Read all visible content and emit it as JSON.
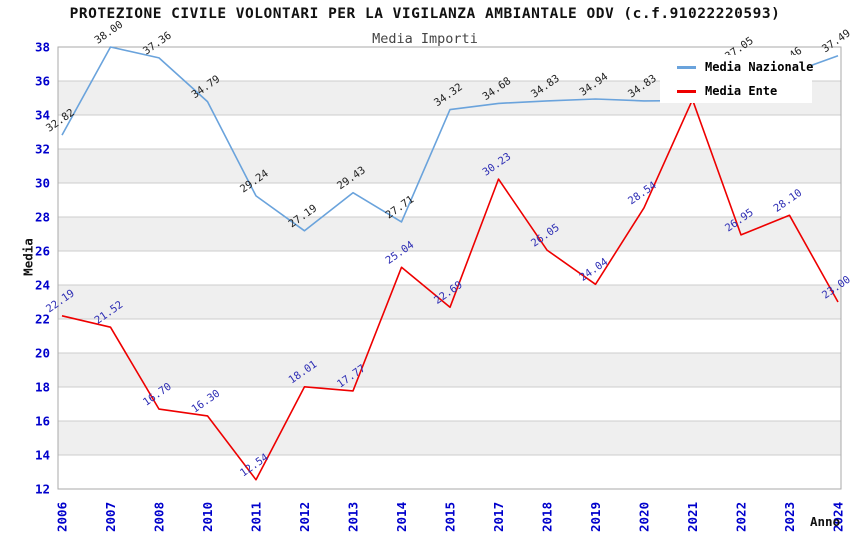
{
  "chart_data": {
    "type": "line",
    "title": "PROTEZIONE CIVILE VOLONTARI PER LA VIGILANZA AMBIANTALE ODV (c.f.91022220593)",
    "subtitle": "Media Importi",
    "xlabel": "Anno",
    "ylabel": "Media",
    "ylim": [
      12,
      38
    ],
    "ytick_step": 2,
    "grid": "horizontal-only",
    "band_fill": "alternating-gray-bands",
    "legend_position": "top-right-inside-plot",
    "categories": [
      "2006",
      "2007",
      "2008",
      "2010",
      "2011",
      "2012",
      "2013",
      "2014",
      "2015",
      "2017",
      "2018",
      "2019",
      "2020",
      "2021",
      "2022",
      "2023",
      "2024"
    ],
    "series": [
      {
        "name": "Media Nazionale",
        "color": "#6aa3dc",
        "label_color": "#222222",
        "values": [
          32.82,
          38.0,
          37.36,
          34.79,
          29.24,
          27.19,
          29.43,
          27.71,
          34.32,
          34.68,
          34.83,
          34.94,
          34.83,
          34.85,
          37.05,
          36.46,
          37.49
        ],
        "labels": [
          "32.82",
          "38.00",
          "37.36",
          "34.79",
          "29.24",
          "27.19",
          "29.43",
          "27.71",
          "34.32",
          "34.68",
          "34.83",
          "34.94",
          "34.83",
          null,
          "37.05",
          "36.46",
          "37.49"
        ]
      },
      {
        "name": "Media Ente",
        "color": "#ee0000",
        "label_color": "#2d2db4",
        "values": [
          22.19,
          21.52,
          16.7,
          16.3,
          12.54,
          18.01,
          17.77,
          25.04,
          22.69,
          30.23,
          26.05,
          24.04,
          28.54,
          34.9,
          26.95,
          28.1,
          23.0
        ],
        "labels": [
          "22.19",
          "21.52",
          "16.70",
          "16.30",
          "12.54",
          "18.01",
          "17.77",
          "25.04",
          "22.69",
          "30.23",
          "26.05",
          "24.04",
          "28.54",
          null,
          "26.95",
          "28.10",
          "23.00"
        ]
      }
    ],
    "colors": {
      "axis_tick": "#0000cc",
      "gridline": "#cccccc",
      "band": "#efefef",
      "plot_border": "#aaaaaa",
      "title": "#111111",
      "subtitle": "#444444"
    }
  }
}
